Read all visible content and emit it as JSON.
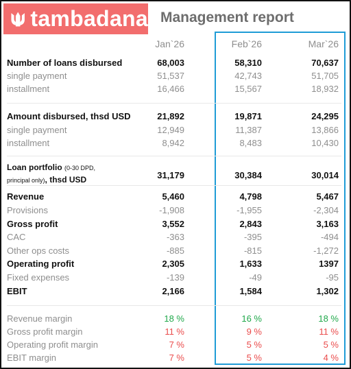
{
  "brand": {
    "name": "tambadana"
  },
  "report_title": "Management report",
  "columns": [
    "Jan`26",
    "Feb`26",
    "Mar`26"
  ],
  "rows": {
    "loans": {
      "label": "Number of loans disbursed",
      "values": [
        "68,003",
        "58,310",
        "70,637"
      ]
    },
    "loans_single": {
      "label": "single payment",
      "values": [
        "51,537",
        "42,743",
        "51,705"
      ]
    },
    "loans_install": {
      "label": "installment",
      "values": [
        "16,466",
        "15,567",
        "18,932"
      ]
    },
    "amount": {
      "label": "Amount disbursed, thsd USD",
      "values": [
        "21,892",
        "19,871",
        "24,295"
      ]
    },
    "amount_single": {
      "label": "single payment",
      "values": [
        "12,949",
        "11,387",
        "13,866"
      ]
    },
    "amount_install": {
      "label": "installment",
      "values": [
        "8,942",
        "8,483",
        "10,430"
      ]
    },
    "portfolio": {
      "label_a": "Loan portfolio",
      "label_b": "(0-30 DPD,",
      "label_c": "principal only)",
      "label_d": ", thsd USD",
      "values": [
        "31,179",
        "30,384",
        "30,014"
      ]
    },
    "revenue": {
      "label": "Revenue",
      "values": [
        "5,460",
        "4,798",
        "5,467"
      ]
    },
    "provisions": {
      "label": "Provisions",
      "values": [
        "-1,908",
        "-1,955",
        "-2,304"
      ]
    },
    "gross": {
      "label": "Gross profit",
      "values": [
        "3,552",
        "2,843",
        "3,163"
      ]
    },
    "cac": {
      "label": "CAC",
      "values": [
        "-363",
        "-395",
        "-494"
      ]
    },
    "other_ops": {
      "label": "Other ops costs",
      "values": [
        "-885",
        "-815",
        "-1,272"
      ]
    },
    "operating": {
      "label": "Operating profit",
      "values": [
        "2,305",
        "1,633",
        "1397"
      ]
    },
    "fixed": {
      "label": "Fixed expenses",
      "values": [
        "-139",
        "-49",
        "-95"
      ]
    },
    "ebit": {
      "label": "EBIT",
      "values": [
        "2,166",
        "1,584",
        "1,302"
      ]
    },
    "rev_margin": {
      "label": "Revenue margin",
      "values": [
        "18 %",
        "16 %",
        "18 %"
      ]
    },
    "gp_margin": {
      "label": "Gross profit margin",
      "values": [
        "11 %",
        "9 %",
        "11 %"
      ]
    },
    "op_margin": {
      "label": "Operating profit margin",
      "values": [
        "7 %",
        "5 %",
        "5 %"
      ]
    },
    "ebit_margin": {
      "label": "EBIT margin",
      "values": [
        "7 %",
        "5 %",
        "4 %"
      ]
    }
  },
  "colors": {
    "brand": "#f26d6d",
    "highlight": "#1e9bd6",
    "positive": "#1fa84a",
    "negative": "#ea4b4b"
  }
}
